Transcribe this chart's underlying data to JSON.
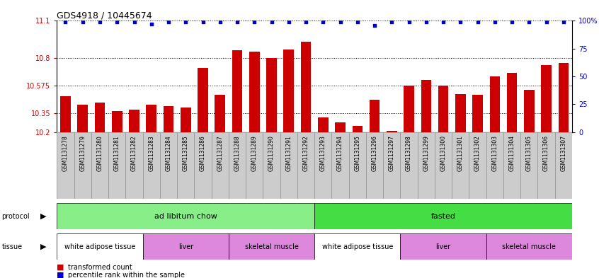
{
  "title": "GDS4918 / 10445674",
  "samples": [
    "GSM1131278",
    "GSM1131279",
    "GSM1131280",
    "GSM1131281",
    "GSM1131282",
    "GSM1131283",
    "GSM1131284",
    "GSM1131285",
    "GSM1131286",
    "GSM1131287",
    "GSM1131288",
    "GSM1131289",
    "GSM1131290",
    "GSM1131291",
    "GSM1131292",
    "GSM1131293",
    "GSM1131294",
    "GSM1131295",
    "GSM1131296",
    "GSM1131297",
    "GSM1131298",
    "GSM1131299",
    "GSM1131300",
    "GSM1131301",
    "GSM1131302",
    "GSM1131303",
    "GSM1131304",
    "GSM1131305",
    "GSM1131306",
    "GSM1131307"
  ],
  "bar_values_30": [
    10.49,
    10.42,
    10.44,
    10.37,
    10.38,
    10.42,
    10.41,
    10.4,
    10.72,
    10.5,
    10.86,
    10.85,
    10.8,
    10.87,
    10.93,
    10.32,
    10.28,
    10.25,
    10.46,
    10.21,
    10.575,
    10.62,
    10.575,
    10.505,
    10.5,
    10.65,
    10.68,
    10.54,
    10.74,
    10.76
  ],
  "percentile_values": [
    99,
    99,
    99,
    99,
    99,
    97,
    99,
    99,
    99,
    99,
    99,
    99,
    99,
    99,
    99,
    99,
    99,
    99,
    96,
    99,
    99,
    99,
    99,
    99,
    99,
    99,
    99,
    99,
    99,
    99
  ],
  "ylim_left": [
    10.2,
    11.1
  ],
  "ylim_right": [
    0,
    100
  ],
  "yticks_left": [
    10.2,
    10.35,
    10.575,
    10.8,
    11.1
  ],
  "ytick_labels_left": [
    "10.2",
    "10.35",
    "10.575",
    "10.8",
    "11.1"
  ],
  "yticks_right": [
    0,
    25,
    50,
    75,
    100
  ],
  "ytick_labels_right": [
    "0",
    "25",
    "50",
    "75",
    "100%"
  ],
  "bar_color": "#cc0000",
  "dot_color": "#0000cc",
  "protocol_groups": [
    {
      "label": "ad libitum chow",
      "start": 0,
      "end": 14,
      "color": "#88ee88"
    },
    {
      "label": "fasted",
      "start": 15,
      "end": 29,
      "color": "#44dd44"
    }
  ],
  "tissue_groups": [
    {
      "label": "white adipose tissue",
      "start": 0,
      "end": 4,
      "color": "#ffffff"
    },
    {
      "label": "liver",
      "start": 5,
      "end": 9,
      "color": "#dd88dd"
    },
    {
      "label": "skeletal muscle",
      "start": 10,
      "end": 14,
      "color": "#dd88dd"
    },
    {
      "label": "white adipose tissue",
      "start": 15,
      "end": 19,
      "color": "#ffffff"
    },
    {
      "label": "liver",
      "start": 20,
      "end": 24,
      "color": "#dd88dd"
    },
    {
      "label": "skeletal muscle",
      "start": 25,
      "end": 29,
      "color": "#dd88dd"
    }
  ],
  "background_color": "#ffffff",
  "tick_color_left": "#cc0000",
  "tick_color_right": "#0000cc",
  "xlabel_bg_color": "#cccccc"
}
